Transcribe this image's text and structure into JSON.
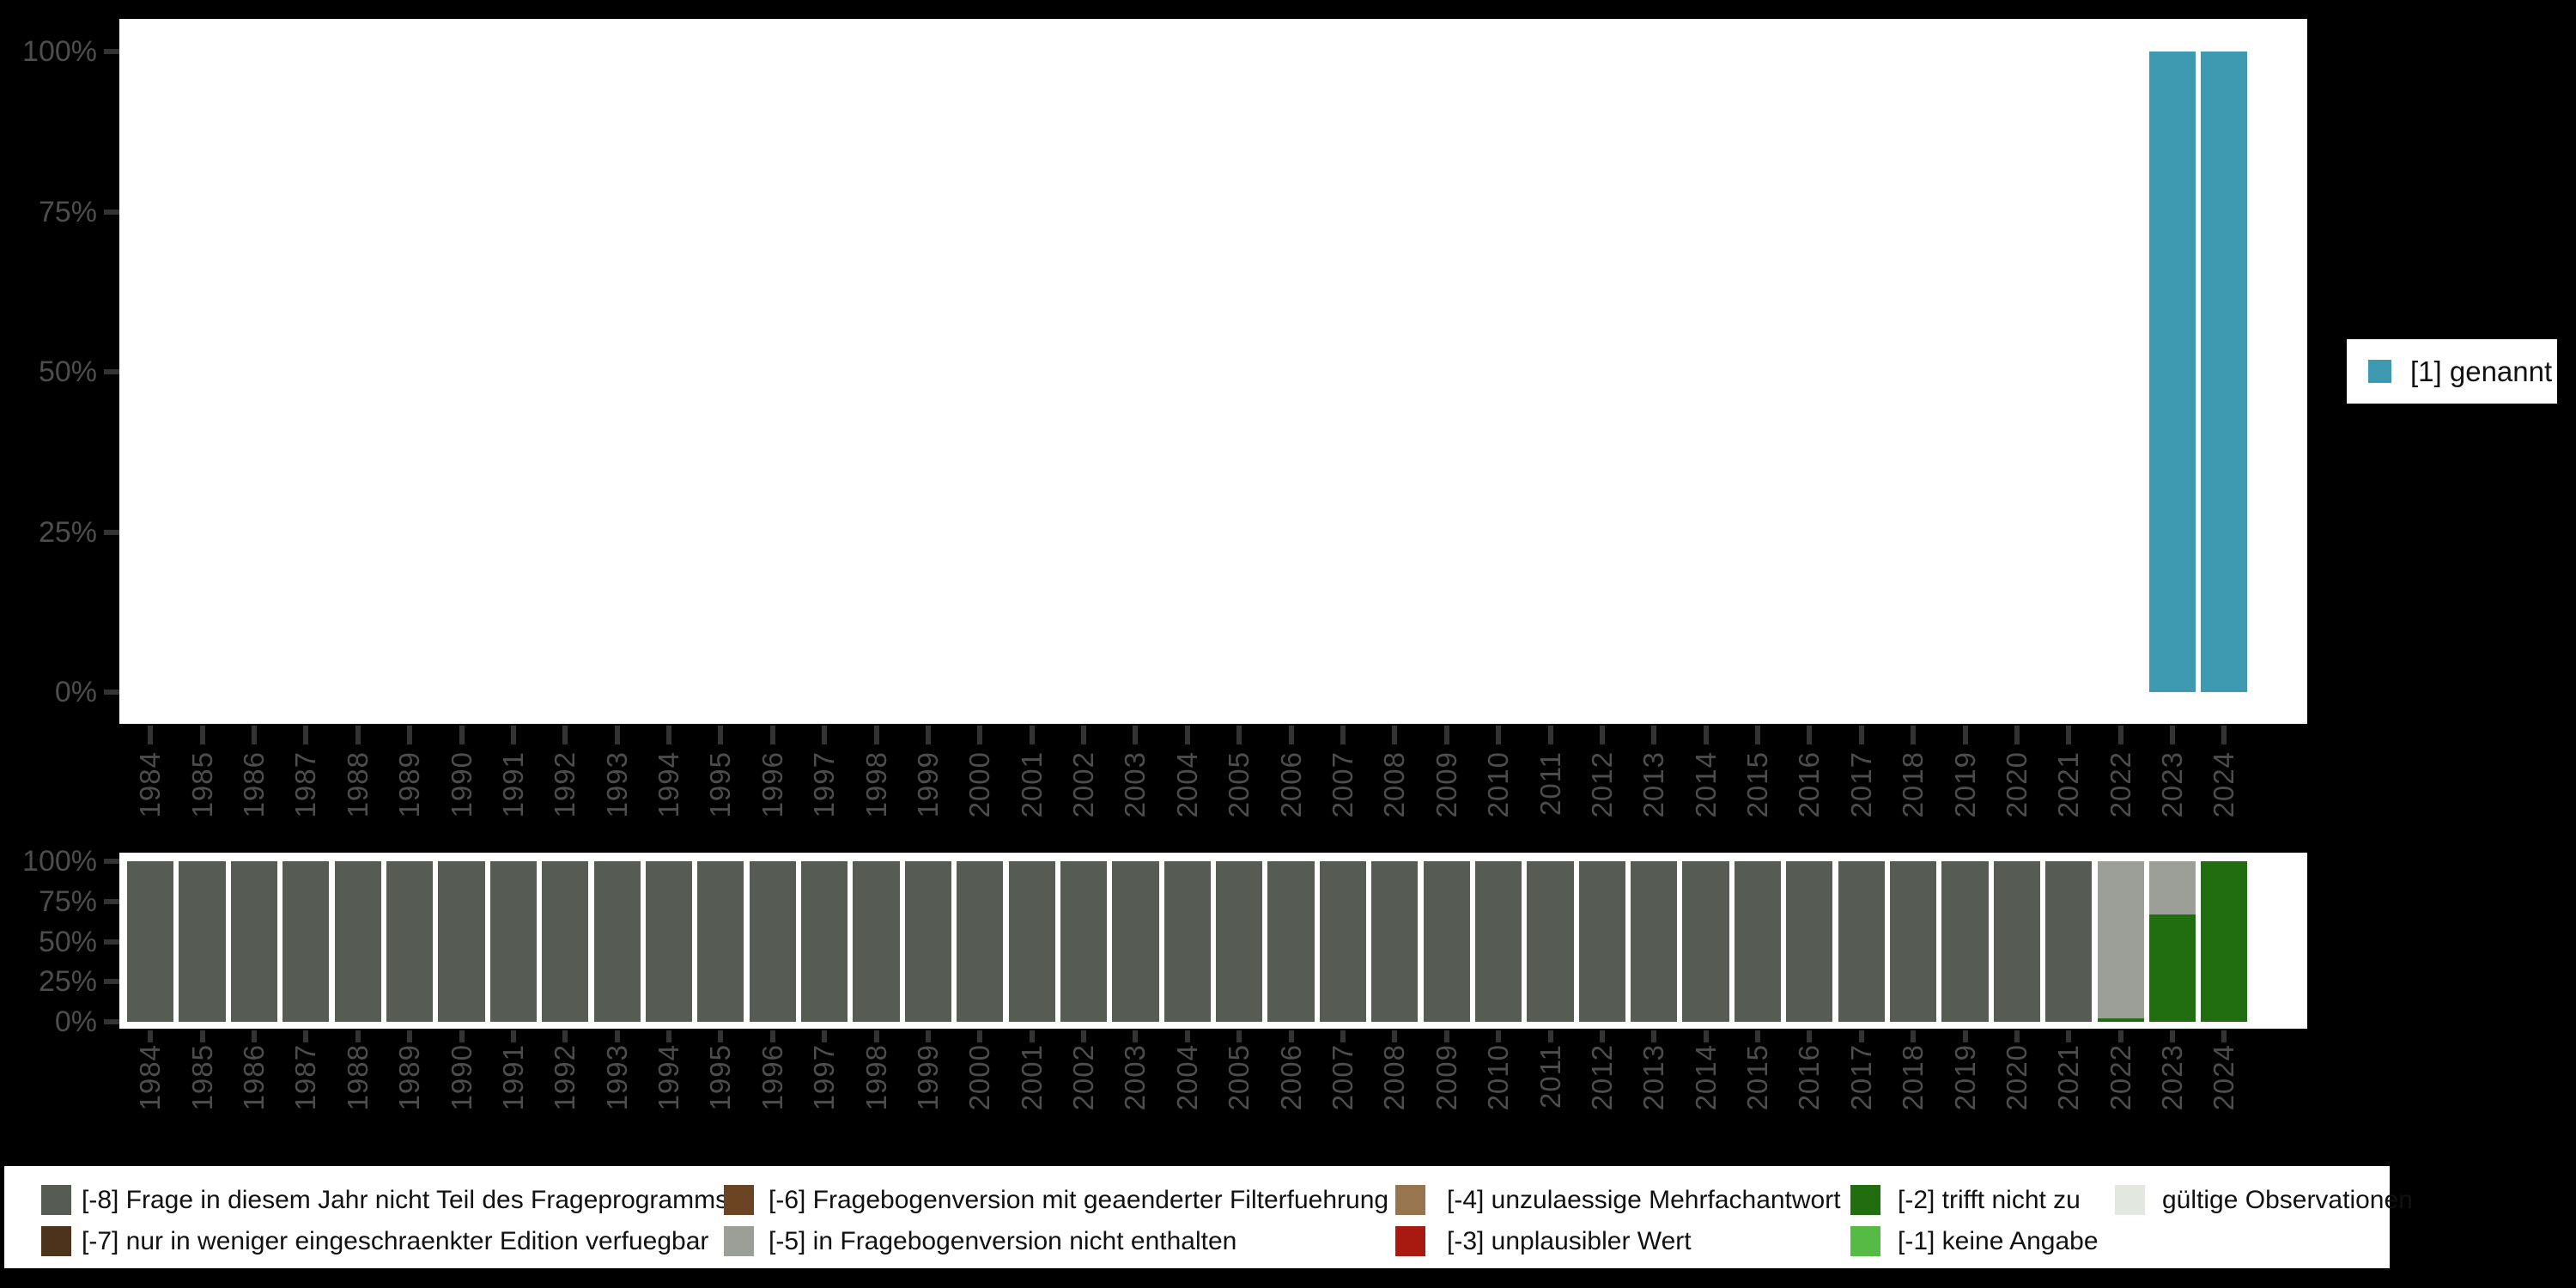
{
  "figure": {
    "background": "#000000",
    "panel_background": "#ffffff",
    "axis_text_color": "#4d4d4d",
    "tick_color": "#333333"
  },
  "legend_right": {
    "label": "[1] genannt",
    "swatch_color": "#3e9ab1"
  },
  "legend_bottom": {
    "columns": [
      {
        "items": [
          {
            "label": "[-8] Frage in diesem Jahr nicht Teil des Frageprogramms",
            "color": "#565b53"
          },
          {
            "label": "[-7] nur in weniger eingeschraenkter Edition verfuegbar",
            "color": "#4e331c"
          }
        ]
      },
      {
        "items": [
          {
            "label": "[-6] Fragebogenversion mit geaenderter Filterfuehrung",
            "color": "#6a4423"
          },
          {
            "label": "[-5] in Fragebogenversion nicht enthalten",
            "color": "#9b9f97"
          }
        ]
      },
      {
        "items": [
          {
            "label": "[-4] unzulaessige Mehrfachantwort",
            "color": "#97754e"
          },
          {
            "label": "[-3] unplausibler Wert",
            "color": "#a81a10"
          }
        ]
      },
      {
        "items": [
          {
            "label": "[-2] trifft nicht zu",
            "color": "#216e10"
          },
          {
            "label": "[-1] keine Angabe",
            "color": "#56bb44"
          }
        ]
      },
      {
        "items": [
          {
            "label": "gültige Observationen",
            "color": "#e2e7df"
          }
        ]
      }
    ]
  },
  "chart_data": [
    {
      "type": "bar",
      "stacked": true,
      "title": "",
      "xlabel": "",
      "ylabel": "",
      "ylim": [
        0,
        100
      ],
      "unit": "percent",
      "grid": false,
      "legend_position": "right",
      "y_ticks": [
        "0%",
        "25%",
        "50%",
        "75%",
        "100%"
      ],
      "categories": [
        1984,
        1985,
        1986,
        1987,
        1988,
        1989,
        1990,
        1991,
        1992,
        1993,
        1994,
        1995,
        1996,
        1997,
        1998,
        1999,
        2000,
        2001,
        2002,
        2003,
        2004,
        2005,
        2006,
        2007,
        2008,
        2009,
        2010,
        2011,
        2012,
        2013,
        2014,
        2015,
        2016,
        2017,
        2018,
        2019,
        2020,
        2021,
        2022,
        2023,
        2024
      ],
      "series": [
        {
          "name": "[1] genannt",
          "color": "#3e9ab1",
          "values": [
            0,
            0,
            0,
            0,
            0,
            0,
            0,
            0,
            0,
            0,
            0,
            0,
            0,
            0,
            0,
            0,
            0,
            0,
            0,
            0,
            0,
            0,
            0,
            0,
            0,
            0,
            0,
            0,
            0,
            0,
            0,
            0,
            0,
            0,
            0,
            0,
            0,
            0,
            0,
            100,
            100
          ]
        }
      ]
    },
    {
      "type": "bar",
      "stacked": true,
      "title": "",
      "xlabel": "",
      "ylabel": "",
      "ylim": [
        0,
        100
      ],
      "unit": "percent",
      "grid": false,
      "legend_position": "bottom",
      "y_ticks": [
        "0%",
        "25%",
        "50%",
        "75%",
        "100%"
      ],
      "categories": [
        1984,
        1985,
        1986,
        1987,
        1988,
        1989,
        1990,
        1991,
        1992,
        1993,
        1994,
        1995,
        1996,
        1997,
        1998,
        1999,
        2000,
        2001,
        2002,
        2003,
        2004,
        2005,
        2006,
        2007,
        2008,
        2009,
        2010,
        2011,
        2012,
        2013,
        2014,
        2015,
        2016,
        2017,
        2018,
        2019,
        2020,
        2021,
        2022,
        2023,
        2024
      ],
      "series": [
        {
          "name": "[-2] trifft nicht zu",
          "color": "#216e10",
          "values": [
            0,
            0,
            0,
            0,
            0,
            0,
            0,
            0,
            0,
            0,
            0,
            0,
            0,
            0,
            0,
            0,
            0,
            0,
            0,
            0,
            0,
            0,
            0,
            0,
            0,
            0,
            0,
            0,
            0,
            0,
            0,
            0,
            0,
            0,
            0,
            0,
            0,
            0,
            2,
            67,
            100
          ]
        },
        {
          "name": "[-5] in Fragebogenversion nicht enthalten",
          "color": "#9b9f97",
          "values": [
            0,
            0,
            0,
            0,
            0,
            0,
            0,
            0,
            0,
            0,
            0,
            0,
            0,
            0,
            0,
            0,
            0,
            0,
            0,
            0,
            0,
            0,
            0,
            0,
            0,
            0,
            0,
            0,
            0,
            0,
            0,
            0,
            0,
            0,
            0,
            0,
            0,
            0,
            98,
            33,
            0
          ]
        },
        {
          "name": "[-8] Frage in diesem Jahr nicht Teil des Frageprogramms",
          "color": "#565b53",
          "values": [
            100,
            100,
            100,
            100,
            100,
            100,
            100,
            100,
            100,
            100,
            100,
            100,
            100,
            100,
            100,
            100,
            100,
            100,
            100,
            100,
            100,
            100,
            100,
            100,
            100,
            100,
            100,
            100,
            100,
            100,
            100,
            100,
            100,
            100,
            100,
            100,
            100,
            100,
            0,
            0,
            0
          ]
        }
      ]
    }
  ]
}
